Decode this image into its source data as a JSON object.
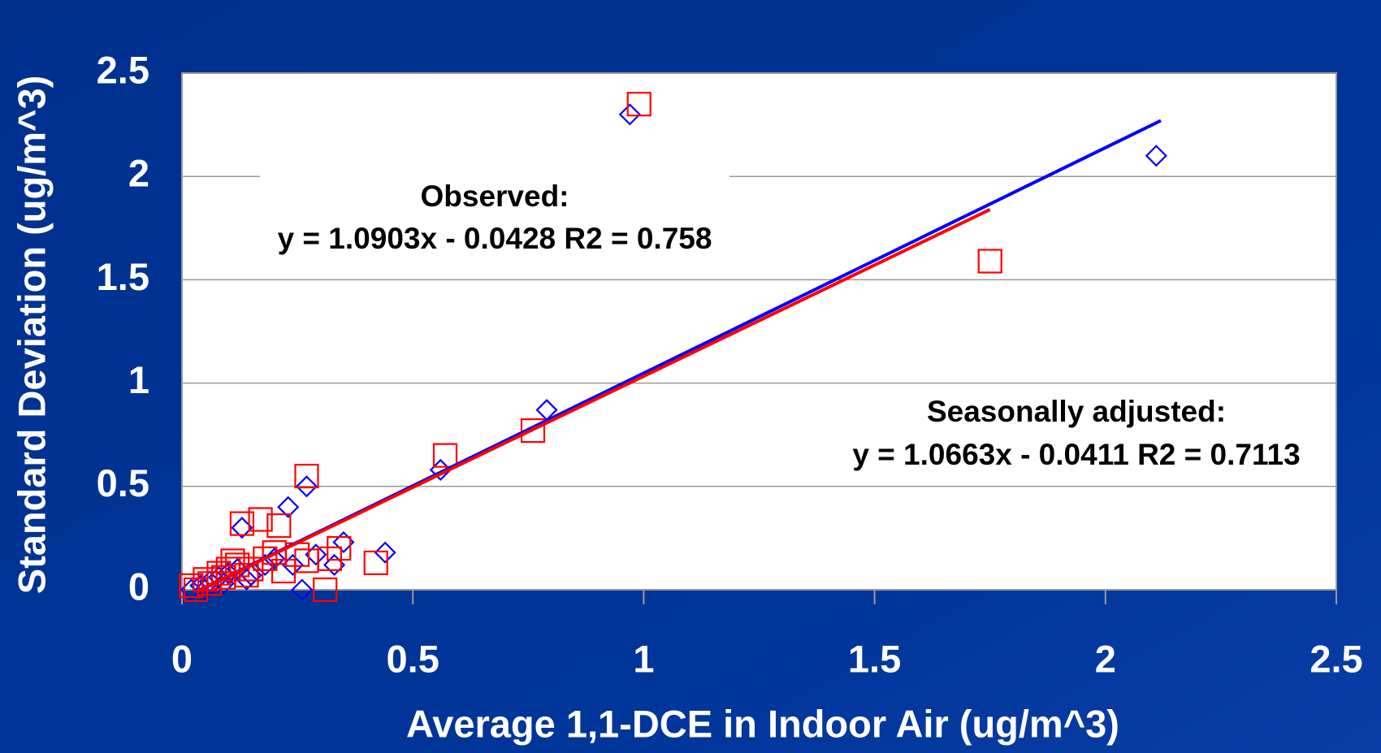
{
  "chart_data": {
    "type": "scatter",
    "x_label": "Average 1,1-DCE in Indoor Air (ug/m^3)",
    "y_label": "Standard Deviation (ug/m^3)",
    "xlim": [
      0,
      2.5
    ],
    "ylim": [
      0,
      2.5
    ],
    "xticks": [
      0,
      0.5,
      1,
      1.5,
      2,
      2.5
    ],
    "yticks": [
      0,
      0.5,
      1,
      1.5,
      2,
      2.5
    ],
    "grid": true,
    "annotations": [
      [
        "Observed:",
        "y = 1.0903x - 0.0428  R2 = 0.758"
      ],
      [
        "Seasonally adjusted:",
        "y = 1.0663x - 0.0411  R2 = 0.7113"
      ]
    ],
    "series": [
      {
        "color": "#0000ff",
        "marker": "diamond",
        "x": [
          0.97,
          2.11,
          0.79,
          0.56,
          0.27,
          0.23,
          0.35,
          0.44,
          0.33,
          0.26,
          0.13,
          0.02,
          0.04,
          0.06,
          0.08,
          0.1,
          0.12,
          0.15,
          0.18,
          0.2,
          0.24,
          0.29,
          0.05,
          0.09,
          0.14
        ],
        "y": [
          2.3,
          2.1,
          0.87,
          0.58,
          0.5,
          0.4,
          0.23,
          0.18,
          0.12,
          0.0,
          0.3,
          0.0,
          0.02,
          0.04,
          0.06,
          0.08,
          0.1,
          0.07,
          0.12,
          0.15,
          0.12,
          0.17,
          0.0,
          0.03,
          0.05
        ],
        "trendline": {
          "x": [
            0.03,
            2.12
          ],
          "y": [
            -0.01,
            2.27
          ]
        }
      },
      {
        "color": "#ff0000",
        "marker": "square",
        "x": [
          0.99,
          1.75,
          0.76,
          0.57,
          0.27,
          0.17,
          0.13,
          0.21,
          0.42,
          0.34,
          0.32,
          0.31,
          0.27,
          0.22,
          0.02,
          0.05,
          0.08,
          0.1,
          0.12,
          0.15,
          0.18,
          0.2,
          0.25,
          0.03,
          0.06,
          0.09,
          0.11,
          0.14
        ],
        "y": [
          2.35,
          1.59,
          0.77,
          0.65,
          0.55,
          0.34,
          0.32,
          0.31,
          0.13,
          0.2,
          0.15,
          0.0,
          0.14,
          0.09,
          0.02,
          0.05,
          0.08,
          0.1,
          0.12,
          0.1,
          0.15,
          0.18,
          0.17,
          0.0,
          0.03,
          0.06,
          0.14,
          0.07
        ],
        "trendline": {
          "x": [
            0.03,
            1.75
          ],
          "y": [
            -0.01,
            1.84
          ]
        }
      }
    ]
  }
}
